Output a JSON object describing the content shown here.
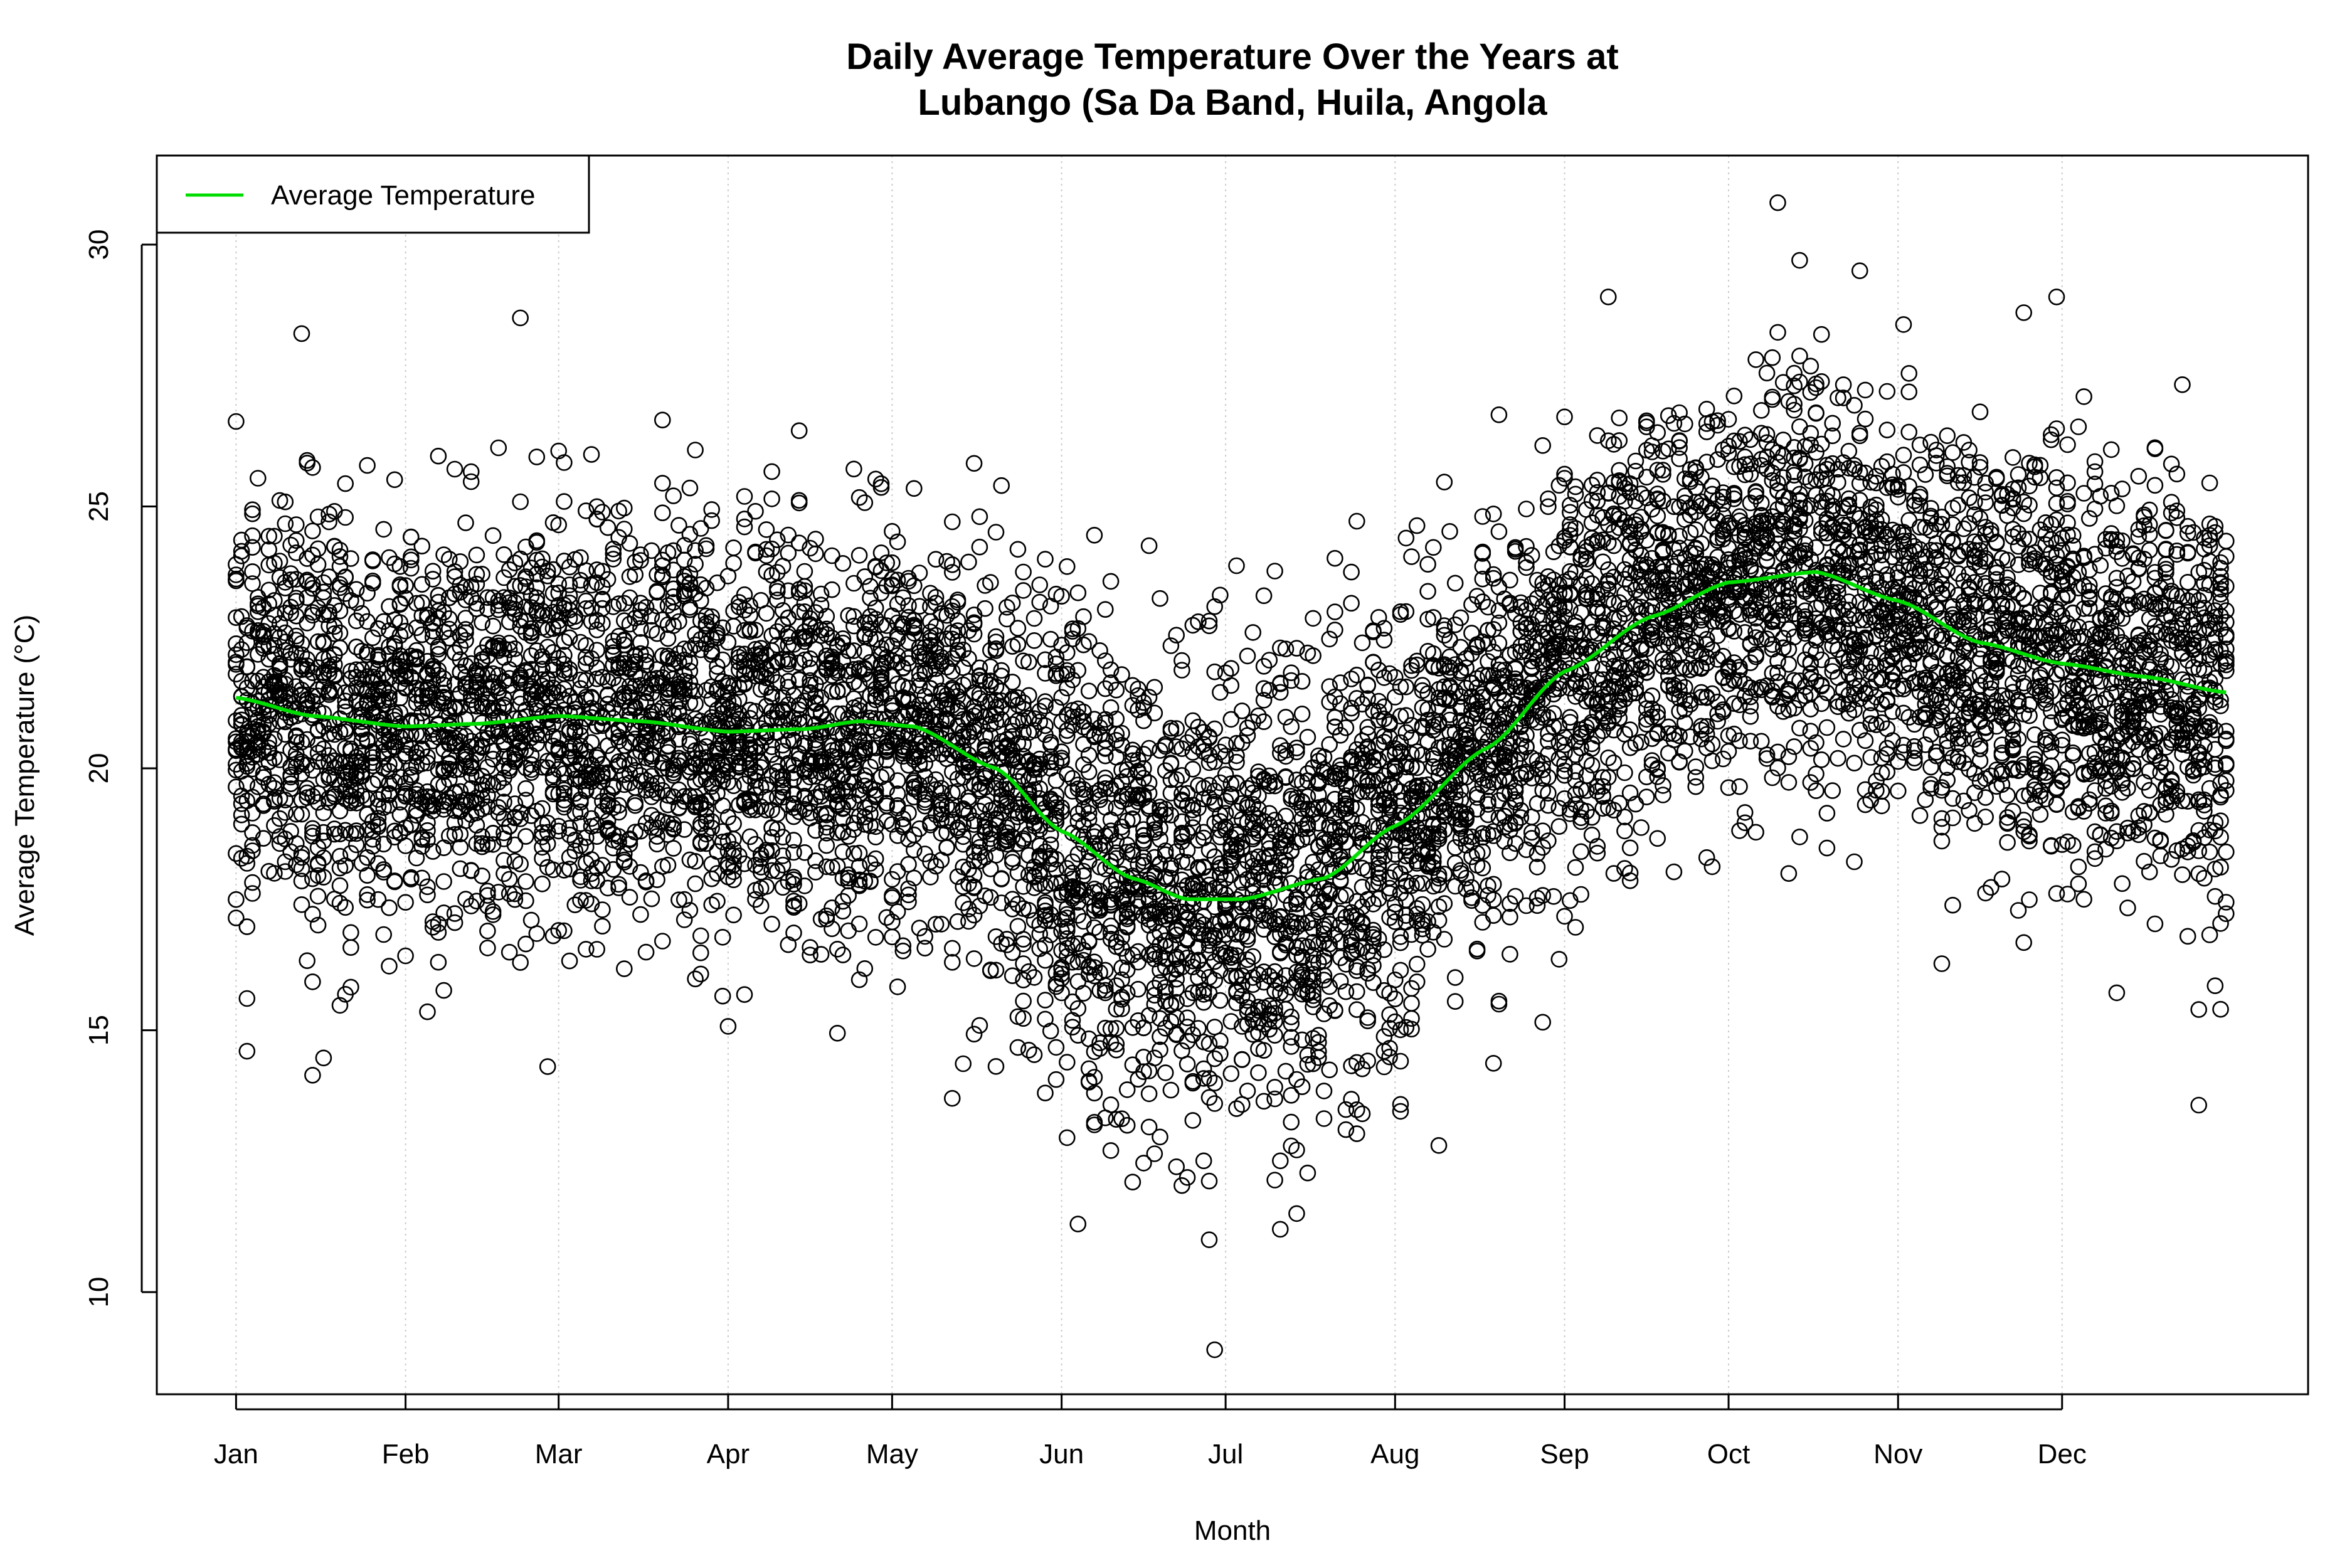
{
  "chart_data": {
    "type": "scatter",
    "title": "Daily Average Temperature Over the Years at Lubango (Sa Da Band, Huila, Angola",
    "title_lines": [
      "Daily Average Temperature Over the Years at",
      "Lubango (Sa Da Band, Huila, Angola"
    ],
    "xlabel": "Month",
    "ylabel": "Average Temperature (°C)",
    "x_unit": "day of year",
    "xlim": [
      -13.5,
      380
    ],
    "ylim": [
      8.05,
      31.7
    ],
    "x_ticks": [
      {
        "label": "Jan",
        "day": 1
      },
      {
        "label": "Feb",
        "day": 32
      },
      {
        "label": "Mar",
        "day": 60
      },
      {
        "label": "Apr",
        "day": 91
      },
      {
        "label": "May",
        "day": 121
      },
      {
        "label": "Jun",
        "day": 152
      },
      {
        "label": "Jul",
        "day": 182
      },
      {
        "label": "Aug",
        "day": 213
      },
      {
        "label": "Sep",
        "day": 244
      },
      {
        "label": "Oct",
        "day": 274
      },
      {
        "label": "Nov",
        "day": 305
      },
      {
        "label": "Dec",
        "day": 335
      }
    ],
    "y_ticks": [
      "10",
      "15",
      "20",
      "25",
      "30"
    ],
    "grid": "vertical dotted at month ticks",
    "legend": {
      "placement": "top-left",
      "entries": [
        {
          "label": "Average Temperature",
          "color": "#00dd00"
        }
      ]
    },
    "colors": {
      "points": "#000000",
      "average_line": "#00dd00",
      "grid": "#cccccc"
    },
    "series": [
      {
        "name": "Average Temperature",
        "type": "line",
        "x": [
          1,
          15,
          32,
          45,
          60,
          75,
          91,
          105,
          115,
          125,
          140,
          152,
          165,
          175,
          185,
          200,
          213,
          230,
          244,
          260,
          274,
          290,
          305,
          320,
          335,
          350,
          365
        ],
        "y": [
          21.35,
          21.0,
          20.8,
          20.85,
          21.0,
          20.9,
          20.7,
          20.75,
          20.9,
          20.8,
          20.0,
          18.8,
          17.9,
          17.5,
          17.5,
          17.9,
          18.9,
          20.4,
          21.85,
          22.9,
          23.55,
          23.75,
          23.2,
          22.4,
          22.0,
          21.75,
          21.45
        ]
      },
      {
        "type": "scatter",
        "description_of_points": "daily observations over many years, open circles",
        "spread_sd": 1.9,
        "notable_points": [
          {
            "x": 283,
            "y": 30.8
          },
          {
            "x": 180,
            "y": 8.9
          },
          {
            "x": 179,
            "y": 11.0
          },
          {
            "x": 155,
            "y": 11.3
          },
          {
            "x": 192,
            "y": 11.2
          },
          {
            "x": 195,
            "y": 11.5
          },
          {
            "x": 3,
            "y": 14.6
          },
          {
            "x": 364,
            "y": 15.4
          },
          {
            "x": 287,
            "y": 29.7
          },
          {
            "x": 298,
            "y": 29.5
          },
          {
            "x": 252,
            "y": 29.0
          },
          {
            "x": 334,
            "y": 29.0
          },
          {
            "x": 53,
            "y": 28.6
          },
          {
            "x": 13,
            "y": 28.3
          },
          {
            "x": 221,
            "y": 12.8
          },
          {
            "x": 132,
            "y": 13.7
          }
        ]
      }
    ]
  }
}
